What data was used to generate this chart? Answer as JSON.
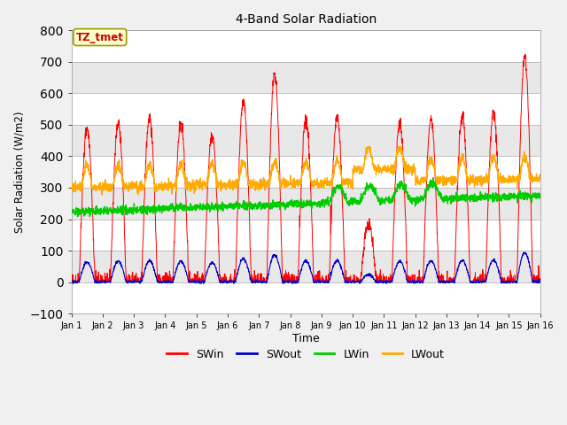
{
  "title": "4-Band Solar Radiation",
  "xlabel": "Time",
  "ylabel": "Solar Radiation (W/m2)",
  "ylim": [
    -100,
    800
  ],
  "annotation": "TZ_tmet",
  "legend": [
    "SWin",
    "SWout",
    "LWin",
    "LWout"
  ],
  "colors": {
    "SWin": "#ff0000",
    "SWout": "#0000cc",
    "LWin": "#00cc00",
    "LWout": "#ffaa00"
  },
  "xtick_labels": [
    "Jan 1",
    "Jan 2",
    "Jan 3",
    "Jan 4",
    "Jan 5",
    "Jan 6",
    "Jan 7",
    "Jan 8",
    "Jan 9",
    "Jan 10",
    "Jan 11",
    "Jan 12",
    "Jan 13",
    "Jan 14",
    "Jan 15",
    "Jan 16"
  ],
  "yticks": [
    -100,
    0,
    100,
    200,
    300,
    400,
    500,
    600,
    700,
    800
  ],
  "band_colors": [
    "#ffffff",
    "#e8e8e8"
  ],
  "fig_bg": "#f0f0f0",
  "plot_bg": "#ffffff"
}
